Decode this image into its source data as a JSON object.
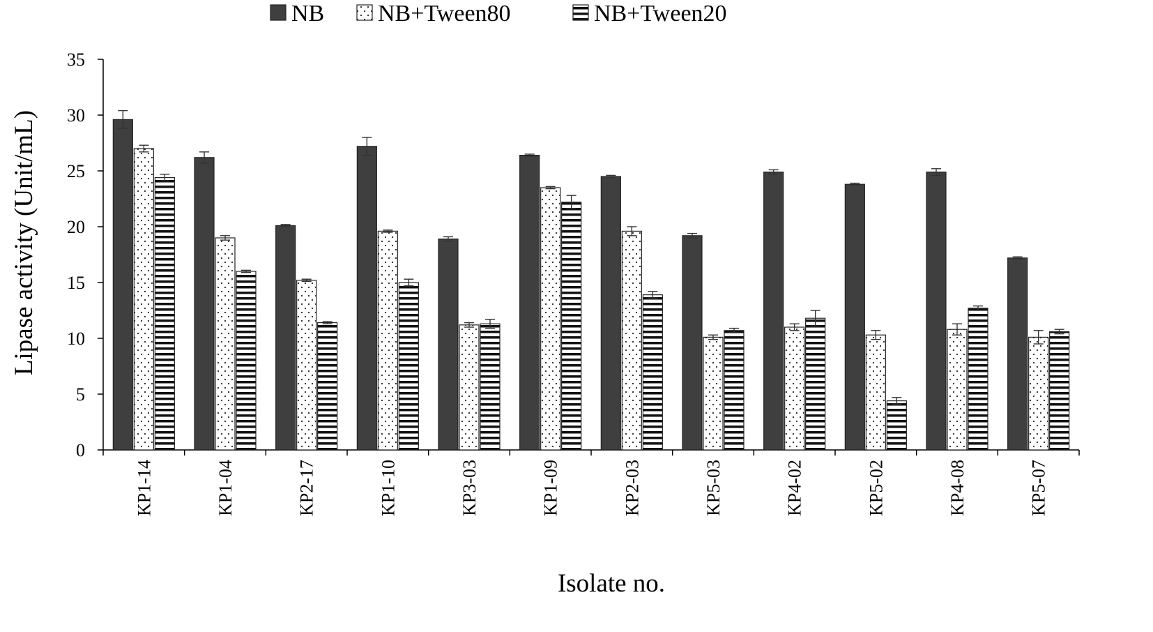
{
  "chart_data": {
    "type": "bar",
    "xlabel": "Isolate no.",
    "ylabel": "Lipase activity (Unit/mL)",
    "ylim": [
      0,
      35
    ],
    "yticks": [
      0,
      5,
      10,
      15,
      20,
      25,
      30,
      35
    ],
    "grid": false,
    "legend_position": "top",
    "categories": [
      "KP1-14",
      "KP1-04",
      "KP2-17",
      "KP1-10",
      "KP3-03",
      "KP1-09",
      "KP2-03",
      "KP5-03",
      "KP4-02",
      "KP5-02",
      "KP4-08",
      "KP5-07"
    ],
    "series": [
      {
        "name": "NB",
        "pattern": "solid-dark",
        "color": "#3f3f3f",
        "values": [
          29.6,
          26.2,
          20.1,
          27.2,
          18.9,
          26.4,
          24.5,
          19.2,
          24.9,
          23.8,
          24.9,
          17.2
        ],
        "errors": [
          0.8,
          0.5,
          0.1,
          0.8,
          0.2,
          0.1,
          0.1,
          0.2,
          0.2,
          0.1,
          0.3,
          0.1
        ]
      },
      {
        "name": "NB+Tween80",
        "pattern": "dotted",
        "color": "#ffffff",
        "values": [
          27.0,
          19.0,
          15.2,
          19.6,
          11.2,
          23.5,
          19.6,
          10.1,
          11.0,
          10.3,
          10.8,
          10.1
        ],
        "errors": [
          0.3,
          0.2,
          0.1,
          0.1,
          0.2,
          0.1,
          0.4,
          0.2,
          0.3,
          0.4,
          0.5,
          0.6
        ]
      },
      {
        "name": "NB+Tween20",
        "pattern": "horizontal-lines",
        "color": "#ffffff",
        "values": [
          24.4,
          16.0,
          11.4,
          15.0,
          11.3,
          22.2,
          13.9,
          10.7,
          11.8,
          4.4,
          12.7,
          10.6
        ],
        "errors": [
          0.3,
          0.1,
          0.1,
          0.3,
          0.4,
          0.6,
          0.3,
          0.2,
          0.7,
          0.3,
          0.2,
          0.2
        ]
      }
    ]
  }
}
